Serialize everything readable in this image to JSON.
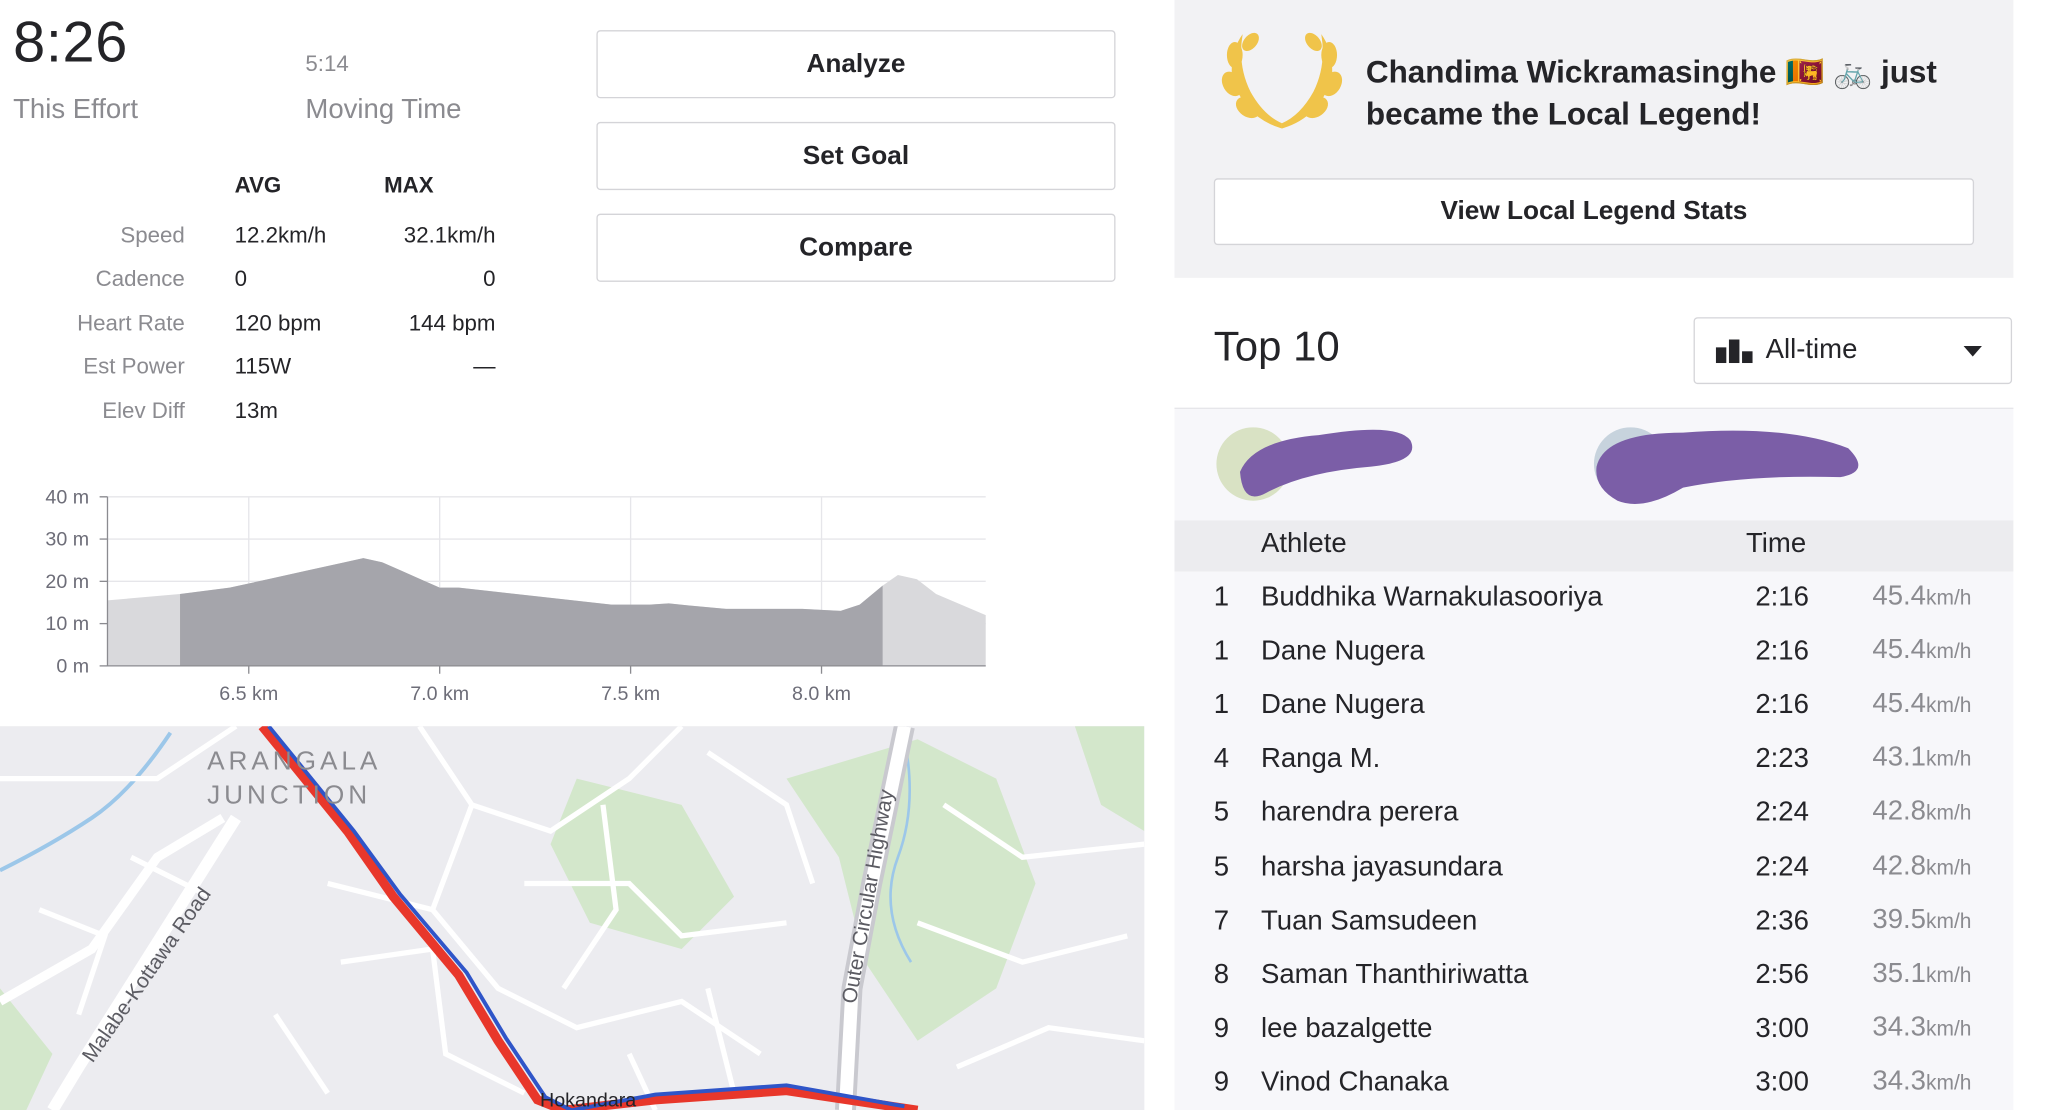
{
  "summary": {
    "effort_time": "8:26",
    "effort_label": "This Effort",
    "moving_time": "5:14",
    "moving_label": "Moving Time"
  },
  "stats": {
    "avg_header": "AVG",
    "max_header": "MAX",
    "rows": [
      {
        "label": "Speed",
        "avg": "12.2km/h",
        "max": "32.1km/h"
      },
      {
        "label": "Cadence",
        "avg": "0",
        "max": "0"
      },
      {
        "label": "Heart Rate",
        "avg": "120 bpm",
        "max": "144 bpm"
      },
      {
        "label": "Est Power",
        "avg": "115W",
        "max": "—"
      },
      {
        "label": "Elev Diff",
        "avg": "13m",
        "max": ""
      }
    ]
  },
  "actions": {
    "analyze": "Analyze",
    "set_goal": "Set Goal",
    "compare": "Compare"
  },
  "chart_data": {
    "type": "area",
    "title": "",
    "xlabel": "",
    "ylabel": "",
    "y_ticks": [
      "40 m",
      "30 m",
      "20 m",
      "10 m",
      "0 m"
    ],
    "x_ticks": [
      "6.5 km",
      "7.0 km",
      "7.5 km",
      "8.0 km"
    ],
    "ylim": [
      0,
      40
    ],
    "xlim": [
      6.13,
      8.43
    ],
    "highlight_range_km": [
      6.32,
      8.16
    ],
    "x": [
      6.13,
      6.32,
      6.45,
      6.55,
      6.65,
      6.75,
      6.8,
      6.85,
      6.9,
      6.95,
      7.0,
      7.05,
      7.15,
      7.25,
      7.35,
      7.45,
      7.55,
      7.6,
      7.65,
      7.75,
      7.85,
      7.95,
      8.05,
      8.1,
      8.16,
      8.2,
      8.25,
      8.3,
      8.43
    ],
    "values": [
      15.5,
      17,
      18.5,
      20.5,
      22.5,
      24.5,
      25.5,
      24.5,
      22.5,
      20.5,
      18.5,
      18.5,
      17.5,
      16.5,
      15.5,
      14.5,
      14.5,
      14.8,
      14.3,
      13.5,
      13.5,
      13.5,
      13.0,
      14.5,
      19,
      21.5,
      20.5,
      17,
      12
    ],
    "grid": true
  },
  "map": {
    "labels": {
      "area_line1": "ARANGALA",
      "area_line2": "JUNCTION",
      "road1": "Malabe-Kottawa Road",
      "road2": "Outer Circular Highway",
      "place": "Hokandara"
    },
    "colors": {
      "route_red": "#e8372b",
      "route_blue": "#2f55c8",
      "water": "#9cc7e9",
      "park": "#d3e7cb",
      "road": "#ffffff"
    }
  },
  "local_legend": {
    "message": "Chandima Wickramasinghe 🇱🇰 🚲 just became the Local Legend!",
    "button": "View Local Legend Stats",
    "laurel_color": "#f0c44a"
  },
  "leaderboard": {
    "title": "Top 10",
    "filter": "All-time",
    "col_athlete": "Athlete",
    "col_time": "Time",
    "speed_unit": "km/h",
    "rows": [
      {
        "rank": "1",
        "athlete": "Buddhika Warnakulasooriya",
        "time": "2:16",
        "speed": "45.4"
      },
      {
        "rank": "1",
        "athlete": "Dane Nugera",
        "time": "2:16",
        "speed": "45.4"
      },
      {
        "rank": "1",
        "athlete": "Dane Nugera",
        "time": "2:16",
        "speed": "45.4"
      },
      {
        "rank": "4",
        "athlete": "Ranga M.",
        "time": "2:23",
        "speed": "43.1"
      },
      {
        "rank": "5",
        "athlete": "harendra perera",
        "time": "2:24",
        "speed": "42.8"
      },
      {
        "rank": "5",
        "athlete": "harsha jayasundara",
        "time": "2:24",
        "speed": "42.8"
      },
      {
        "rank": "7",
        "athlete": "Tuan Samsudeen",
        "time": "2:36",
        "speed": "39.5"
      },
      {
        "rank": "8",
        "athlete": "Saman Thanthiriwatta",
        "time": "2:56",
        "speed": "35.1"
      },
      {
        "rank": "9",
        "athlete": "lee bazalgette",
        "time": "3:00",
        "speed": "34.3"
      },
      {
        "rank": "9",
        "athlete": "Vinod Chanaka",
        "time": "3:00",
        "speed": "34.3"
      }
    ],
    "redaction_color": "#7b5ea7"
  }
}
